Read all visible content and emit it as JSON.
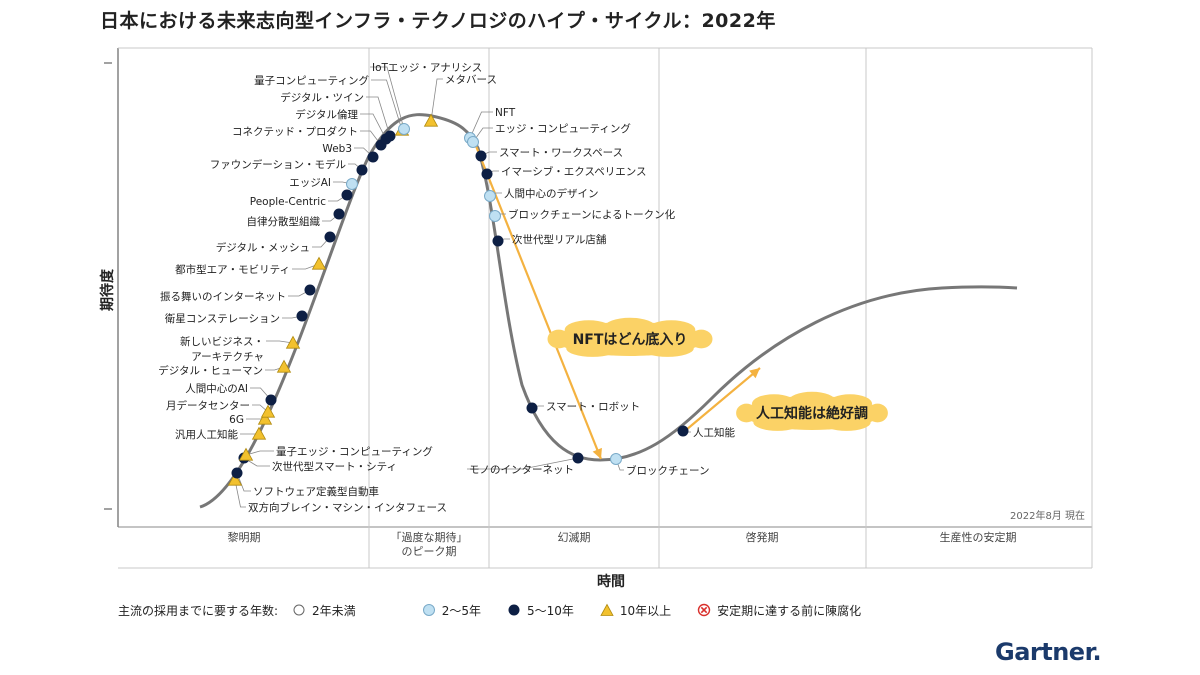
{
  "title": "日本における未来志向型インフラ・テクノロジのハイプ・サイクル：2022年",
  "date_note": "2022年8月 現在",
  "brand": "Gartner.",
  "colors": {
    "curve": "#777777",
    "light_blue": "#bfe0f2",
    "dark_navy": "#0d1f44",
    "triangle": "#f2c12e",
    "annotation_arrow": "#f4b240",
    "cloud": "#fbd266",
    "grid": "#c8c8c8"
  },
  "chart_data": {
    "type": "hype-cycle",
    "title": "日本における未来志向型インフラ・テクノロジのハイプ・サイクル：2022年",
    "xlabel": "時間",
    "ylabel": "期待度",
    "phases": [
      "黎明期",
      "「過度な期待」のピーク期",
      "幻滅期",
      "啓発期",
      "生産性の安定期"
    ],
    "phase_label_lines": [
      [
        "黎明期"
      ],
      [
        "「過度な期待」",
        "のピーク期"
      ],
      [
        "幻滅期"
      ],
      [
        "啓発期"
      ],
      [
        "生産性の安定期"
      ]
    ],
    "legend_title": "主流の採用までに要する年数:",
    "legend": [
      {
        "key": "lt2",
        "label": "2年未満",
        "marker": "open-circle"
      },
      {
        "key": "2to5",
        "label": "2〜5年",
        "marker": "light-circle"
      },
      {
        "key": "5to10",
        "label": "5〜10年",
        "marker": "dark-circle"
      },
      {
        "key": "gt10",
        "label": "10年以上",
        "marker": "triangle"
      },
      {
        "key": "obsolete",
        "label": "安定期に達する前に陳腐化",
        "marker": "x-circle"
      }
    ],
    "technologies": [
      {
        "name": "双方向ブレイン・マシン・インタフェース",
        "phase": "黎明期",
        "adoption": "gt10"
      },
      {
        "name": "ソフトウェア定義型自動車",
        "phase": "黎明期",
        "adoption": "5to10"
      },
      {
        "name": "次世代型スマート・シティ",
        "phase": "黎明期",
        "adoption": "5to10"
      },
      {
        "name": "量子エッジ・コンピューティング",
        "phase": "黎明期",
        "adoption": "gt10"
      },
      {
        "name": "汎用人工知能",
        "phase": "黎明期",
        "adoption": "gt10"
      },
      {
        "name": "6G",
        "phase": "黎明期",
        "adoption": "gt10"
      },
      {
        "name": "月データセンター",
        "phase": "黎明期",
        "adoption": "gt10"
      },
      {
        "name": "人間中心のAI",
        "phase": "黎明期",
        "adoption": "5to10"
      },
      {
        "name": "デジタル・ヒューマン",
        "phase": "黎明期",
        "adoption": "gt10"
      },
      {
        "name": "新しいビジネス・アーキテクチャ",
        "phase": "黎明期",
        "adoption": "gt10"
      },
      {
        "name": "衛星コンステレーション",
        "phase": "黎明期",
        "adoption": "5to10"
      },
      {
        "name": "振る舞いのインターネット",
        "phase": "黎明期",
        "adoption": "5to10"
      },
      {
        "name": "都市型エア・モビリティ",
        "phase": "黎明期",
        "adoption": "gt10"
      },
      {
        "name": "デジタル・メッシュ",
        "phase": "黎明期",
        "adoption": "5to10"
      },
      {
        "name": "自律分散型組織",
        "phase": "黎明期",
        "adoption": "5to10"
      },
      {
        "name": "People-Centric",
        "phase": "黎明期",
        "adoption": "5to10"
      },
      {
        "name": "エッジAI",
        "phase": "黎明期",
        "adoption": "2to5"
      },
      {
        "name": "ファウンデーション・モデル",
        "phase": "黎明期",
        "adoption": "5to10"
      },
      {
        "name": "Web3",
        "phase": "「過度な期待」のピーク期",
        "adoption": "5to10"
      },
      {
        "name": "コネクテッド・プロダクト",
        "phase": "「過度な期待」のピーク期",
        "adoption": "5to10"
      },
      {
        "name": "デジタル倫理",
        "phase": "「過度な期待」のピーク期",
        "adoption": "5to10"
      },
      {
        "name": "デジタル・ツイン",
        "phase": "「過度な期待」のピーク期",
        "adoption": "5to10"
      },
      {
        "name": "量子コンピューティング",
        "phase": "「過度な期待」のピーク期",
        "adoption": "gt10"
      },
      {
        "name": "IoTエッジ・アナリシス",
        "phase": "「過度な期待」のピーク期",
        "adoption": "2to5"
      },
      {
        "name": "メタバース",
        "phase": "「過度な期待」のピーク期",
        "adoption": "gt10"
      },
      {
        "name": "NFT",
        "phase": "幻滅期",
        "adoption": "2to5"
      },
      {
        "name": "エッジ・コンピューティング",
        "phase": "幻滅期",
        "adoption": "2to5"
      },
      {
        "name": "スマート・ワークスペース",
        "phase": "幻滅期",
        "adoption": "5to10"
      },
      {
        "name": "イマーシブ・エクスペリエンス",
        "phase": "幻滅期",
        "adoption": "5to10"
      },
      {
        "name": "人間中心のデザイン",
        "phase": "幻滅期",
        "adoption": "2to5"
      },
      {
        "name": "ブロックチェーンによるトークン化",
        "phase": "幻滅期",
        "adoption": "2to5"
      },
      {
        "name": "次世代型リアル店舗",
        "phase": "幻滅期",
        "adoption": "5to10"
      },
      {
        "name": "スマート・ロボット",
        "phase": "幻滅期",
        "adoption": "5to10"
      },
      {
        "name": "モノのインターネット",
        "phase": "幻滅期",
        "adoption": "5to10"
      },
      {
        "name": "ブロックチェーン",
        "phase": "幻滅期",
        "adoption": "2to5"
      },
      {
        "name": "人工知能",
        "phase": "啓発期",
        "adoption": "5to10"
      }
    ],
    "annotations": [
      {
        "text": "NFTはどん底入り",
        "from": "NFT",
        "to": "ブロックチェーン"
      },
      {
        "text": "人工知能は絶好調",
        "from": "人工知能",
        "to": "啓発期"
      }
    ]
  }
}
